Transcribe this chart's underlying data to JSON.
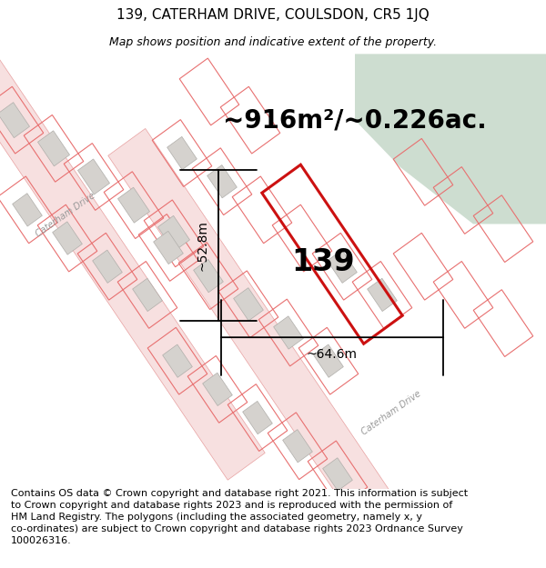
{
  "title": "139, CATERHAM DRIVE, COULSDON, CR5 1JQ",
  "subtitle": "Map shows position and indicative extent of the property.",
  "area_text": "~916m²/~0.226ac.",
  "dim_width": "~64.6m",
  "dim_height": "~52.8m",
  "label": "139",
  "footer": "Contains OS data © Crown copyright and database right 2021. This information is subject\nto Crown copyright and database rights 2023 and is reproduced with the permission of\nHM Land Registry. The polygons (including the associated geometry, namely x, y\nco-ordinates) are subject to Crown copyright and database rights 2023 Ordnance Survey\n100026316.",
  "map_bg": "#f0eeeb",
  "road_fill": "#f7e0e0",
  "road_edge": "#e8a0a0",
  "plot_line": "#e87070",
  "plot_outline_color": "#cc1111",
  "building_fill": "#d5d2ce",
  "building_edge": "#b0aeaa",
  "green_fill": "#cdddd0",
  "green_edge": "none",
  "road_label_color": "#999999",
  "title_fontsize": 11,
  "subtitle_fontsize": 9,
  "area_fontsize": 20,
  "label_fontsize": 24,
  "dim_fontsize": 10,
  "footer_fontsize": 8
}
